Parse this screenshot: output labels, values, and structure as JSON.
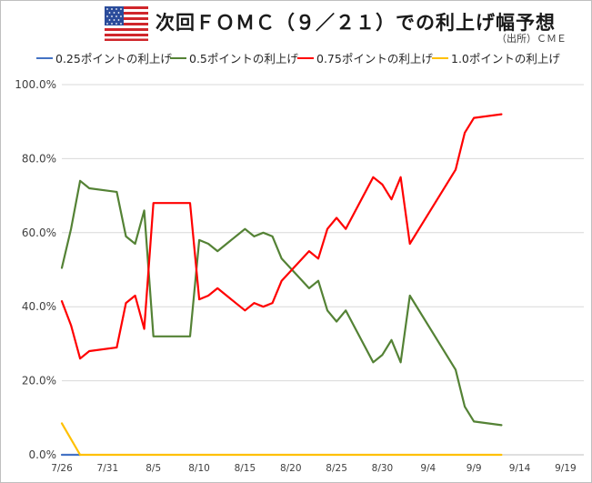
{
  "header": {
    "title": "次回ＦＯＭＣ（９／２１）での利上げ幅予想",
    "source": "（出所）ＣＭＥ",
    "flag_icon": "us-flag-icon"
  },
  "colors": {
    "s025": "#4472c4",
    "s05": "#548235",
    "s075": "#ff0000",
    "s10": "#ffc000",
    "grid": "#d9d9d9",
    "axis": "#bfbfbf"
  },
  "chart_data": {
    "type": "line",
    "title": "次回ＦＯＭＣ（９／２１）での利上げ幅予想",
    "xlabel": "",
    "ylabel": "",
    "ylim": [
      0,
      100
    ],
    "y_ticks": [
      "0.0%",
      "20.0%",
      "40.0%",
      "60.0%",
      "80.0%",
      "100.0%"
    ],
    "x_ticks": [
      "7/26",
      "7/31",
      "8/5",
      "8/10",
      "8/15",
      "8/20",
      "8/25",
      "8/30",
      "9/4",
      "9/9",
      "9/14",
      "9/19"
    ],
    "x_range": [
      "7/26",
      "9/21"
    ],
    "grid": "horizontal",
    "legend_position": "top",
    "series": [
      {
        "name": "0.25ポイントの利上げ",
        "color": "#4472c4",
        "points": [
          [
            "7/26",
            0
          ],
          [
            "7/28",
            0
          ]
        ]
      },
      {
        "name": "0.5ポイントの利上げ",
        "color": "#548235",
        "points": [
          [
            "7/26",
            50.5
          ],
          [
            "7/27",
            61
          ],
          [
            "7/28",
            74
          ],
          [
            "7/29",
            72
          ],
          [
            "8/1",
            71
          ],
          [
            "8/2",
            59
          ],
          [
            "8/3",
            57
          ],
          [
            "8/4",
            66
          ],
          [
            "8/5",
            32
          ],
          [
            "8/9",
            32
          ],
          [
            "8/10",
            58
          ],
          [
            "8/11",
            57
          ],
          [
            "8/12",
            55
          ],
          [
            "8/15",
            61
          ],
          [
            "8/16",
            59
          ],
          [
            "8/17",
            60
          ],
          [
            "8/18",
            59
          ],
          [
            "8/19",
            53
          ],
          [
            "8/22",
            45
          ],
          [
            "8/23",
            47
          ],
          [
            "8/24",
            39
          ],
          [
            "8/25",
            36
          ],
          [
            "8/26",
            39
          ],
          [
            "8/29",
            25
          ],
          [
            "8/30",
            27
          ],
          [
            "8/31",
            31
          ],
          [
            "9/1",
            25
          ],
          [
            "9/2",
            43
          ],
          [
            "9/7",
            23
          ],
          [
            "9/8",
            13
          ],
          [
            "9/9",
            9
          ],
          [
            "9/12",
            8
          ]
        ]
      },
      {
        "name": "0.75ポイントの利上げ",
        "color": "#ff0000",
        "points": [
          [
            "7/26",
            41.5
          ],
          [
            "7/27",
            35
          ],
          [
            "7/28",
            26
          ],
          [
            "7/29",
            28
          ],
          [
            "8/1",
            29
          ],
          [
            "8/2",
            41
          ],
          [
            "8/3",
            43
          ],
          [
            "8/4",
            34
          ],
          [
            "8/5",
            68
          ],
          [
            "8/9",
            68
          ],
          [
            "8/10",
            42
          ],
          [
            "8/11",
            43
          ],
          [
            "8/12",
            45
          ],
          [
            "8/15",
            39
          ],
          [
            "8/16",
            41
          ],
          [
            "8/17",
            40
          ],
          [
            "8/18",
            41
          ],
          [
            "8/19",
            47
          ],
          [
            "8/22",
            55
          ],
          [
            "8/23",
            53
          ],
          [
            "8/24",
            61
          ],
          [
            "8/25",
            64
          ],
          [
            "8/26",
            61
          ],
          [
            "8/29",
            75
          ],
          [
            "8/30",
            73
          ],
          [
            "8/31",
            69
          ],
          [
            "9/1",
            75
          ],
          [
            "9/2",
            57
          ],
          [
            "9/7",
            77
          ],
          [
            "9/8",
            87
          ],
          [
            "9/9",
            91
          ],
          [
            "9/12",
            92
          ]
        ]
      },
      {
        "name": "1.0ポイントの利上げ",
        "color": "#ffc000",
        "points": [
          [
            "7/26",
            8.5
          ],
          [
            "7/28",
            0
          ],
          [
            "9/12",
            0
          ]
        ]
      }
    ]
  }
}
